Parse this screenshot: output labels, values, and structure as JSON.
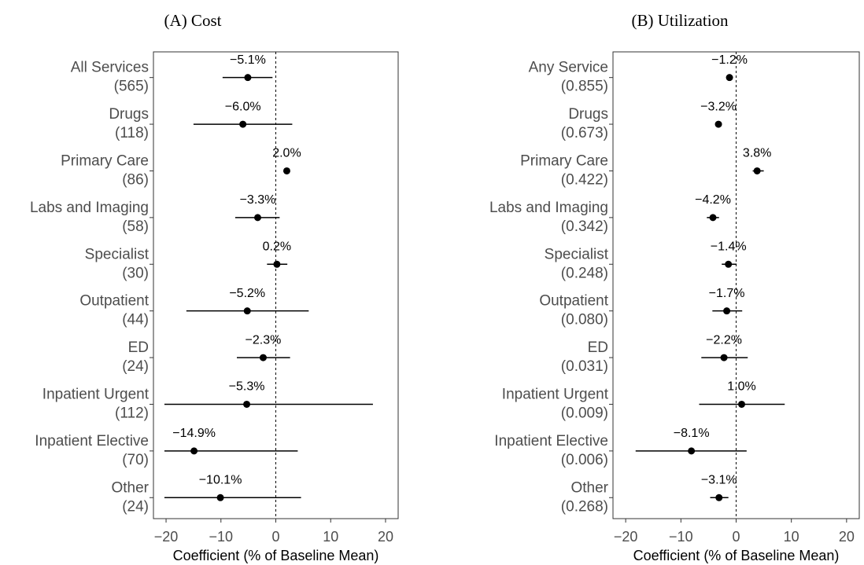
{
  "chart_data": [
    {
      "type": "forest",
      "title": "(A) Cost",
      "categories": [
        "All Services",
        "Drugs",
        "Primary Care",
        "Labs and Imaging",
        "Specialist",
        "Outpatient",
        "ED",
        "Inpatient Urgent",
        "Inpatient Elective",
        "Other"
      ],
      "category_notes": [
        "(565)",
        "(118)",
        "(86)",
        "(58)",
        "(30)",
        "(44)",
        "(24)",
        "(112)",
        "(70)",
        "(24)"
      ],
      "values": [
        -5.1,
        -6.0,
        2.0,
        -3.3,
        0.2,
        -5.2,
        -2.3,
        -5.3,
        -14.9,
        -10.1
      ],
      "value_labels": [
        "−5.1%",
        "−6.0%",
        "2.0%",
        "−3.3%",
        "0.2%",
        "−5.2%",
        "−2.3%",
        "−5.3%",
        "−14.9%",
        "−10.1%"
      ],
      "ci_low": [
        -9.7,
        -15.0,
        1.5,
        -7.4,
        -1.6,
        -16.3,
        -7.1,
        -20.3,
        -20.3,
        -20.3
      ],
      "ci_high": [
        -0.6,
        3.0,
        2.5,
        0.7,
        2.1,
        6.0,
        2.6,
        17.7,
        4.0,
        4.6
      ],
      "xlabel": "Coefficient (% of Baseline Mean)",
      "xlim": [
        -22.3,
        22.3
      ],
      "xticks": [
        {
          "value": -20,
          "label": "−20"
        },
        {
          "value": -10,
          "label": "−10"
        },
        0,
        10,
        20
      ],
      "reference_line": 0,
      "color": "#000000"
    },
    {
      "type": "forest",
      "title": "(B) Utilization",
      "categories": [
        "Any Service",
        "Drugs",
        "Primary Care",
        "Labs and Imaging",
        "Specialist",
        "Outpatient",
        "ED",
        "Inpatient Urgent",
        "Inpatient Elective",
        "Other"
      ],
      "category_notes": [
        "(0.855)",
        "(0.673)",
        "(0.422)",
        "(0.342)",
        "(0.248)",
        "(0.080)",
        "(0.031)",
        "(0.009)",
        "(0.006)",
        "(0.268)"
      ],
      "values": [
        -1.2,
        -3.2,
        3.8,
        -4.2,
        -1.4,
        -1.7,
        -2.2,
        1.0,
        -8.1,
        -3.1
      ],
      "value_labels": [
        "−1.2%",
        "−3.2%",
        "3.8%",
        "−4.2%",
        "−1.4%",
        "−1.7%",
        "−2.2%",
        "1.0%",
        "−8.1%",
        "−3.1%"
      ],
      "ci_low": [
        -1.6,
        -3.6,
        3.0,
        -5.3,
        -2.6,
        -4.3,
        -6.3,
        -6.7,
        -18.2,
        -4.7
      ],
      "ci_high": [
        -0.8,
        -2.8,
        5.0,
        -3.1,
        0.1,
        1.1,
        2.1,
        8.8,
        1.9,
        -1.4
      ],
      "xlabel": "Coefficient (% of Baseline Mean)",
      "xlim": [
        -22.3,
        22.3
      ],
      "xticks": [
        {
          "value": -20,
          "label": "−20"
        },
        {
          "value": -10,
          "label": "−10"
        },
        0,
        10,
        20
      ],
      "reference_line": 0,
      "color": "#000000"
    }
  ]
}
